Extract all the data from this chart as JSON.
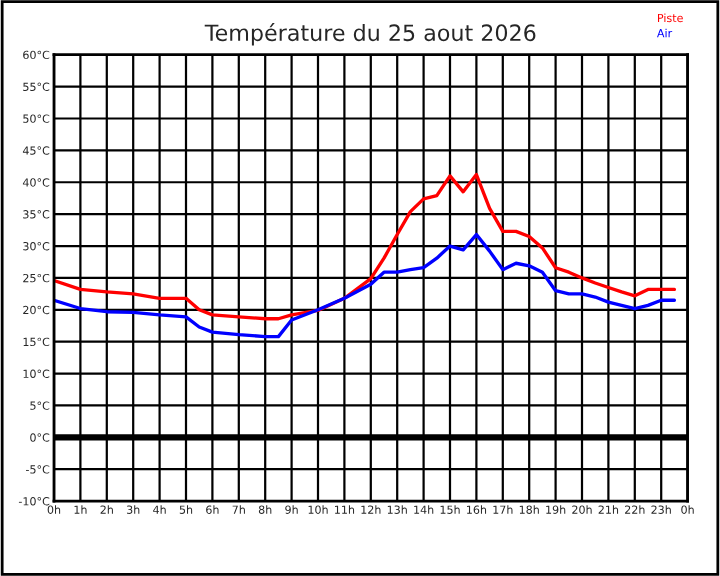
{
  "chart_data": {
    "type": "line",
    "title": "Température du 25 aout 2026",
    "x": [
      "2026-08-25T00:00",
      "2026-08-25T01:00",
      "2026-08-25T02:00",
      "2026-08-25T03:00",
      "2026-08-25T04:00",
      "2026-08-25T05:00",
      "2026-08-25T05:30",
      "2026-08-25T06:00",
      "2026-08-25T07:00",
      "2026-08-25T08:00",
      "2026-08-25T08:30",
      "2026-08-25T09:00",
      "2026-08-25T10:00",
      "2026-08-25T11:00",
      "2026-08-25T12:00",
      "2026-08-25T12:30",
      "2026-08-25T13:00",
      "2026-08-25T13:30",
      "2026-08-25T14:00",
      "2026-08-25T14:30",
      "2026-08-25T15:00",
      "2026-08-25T15:30",
      "2026-08-25T16:00",
      "2026-08-25T16:30",
      "2026-08-25T17:00",
      "2026-08-25T17:30",
      "2026-08-25T18:00",
      "2026-08-25T18:30",
      "2026-08-25T19:00",
      "2026-08-25T19:30",
      "2026-08-25T20:00",
      "2026-08-25T20:30",
      "2026-08-25T21:00",
      "2026-08-25T21:30",
      "2026-08-25T22:00",
      "2026-08-25T22:30",
      "2026-08-25T23:00",
      "2026-08-25T23:30"
    ],
    "series": [
      {
        "name": "Piste",
        "color": "#ff0000",
        "values": [
          24.6,
          23.2,
          22.8,
          22.5,
          21.8,
          21.8,
          20.0,
          19.2,
          18.9,
          18.6,
          18.6,
          19.2,
          19.9,
          21.8,
          24.9,
          28.1,
          31.8,
          35.4,
          37.4,
          37.9,
          41.0,
          38.5,
          41.2,
          35.9,
          32.3,
          32.3,
          31.5,
          29.7,
          26.6,
          25.9,
          25.0,
          24.2,
          23.5,
          22.8,
          22.2,
          23.2,
          23.2,
          23.2
        ]
      },
      {
        "name": "Air",
        "color": "#0000ff",
        "values": [
          21.5,
          20.2,
          19.7,
          19.6,
          19.2,
          18.9,
          17.3,
          16.5,
          16.1,
          15.8,
          15.8,
          18.4,
          20.0,
          21.8,
          24.0,
          25.9,
          25.9,
          26.3,
          26.6,
          28.1,
          30.0,
          29.4,
          31.8,
          29.2,
          26.3,
          27.3,
          26.9,
          25.9,
          23.0,
          22.5,
          22.5,
          22.0,
          21.2,
          20.7,
          20.2,
          20.7,
          21.5,
          21.5
        ]
      }
    ],
    "xlim": [
      "2026-08-25T00:00",
      "2026-08-26T00:00"
    ],
    "xticks": [
      {
        "value": "2026-08-25T00:00",
        "label": "0h"
      },
      {
        "value": "2026-08-25T01:00",
        "label": "1h"
      },
      {
        "value": "2026-08-25T02:00",
        "label": "2h"
      },
      {
        "value": "2026-08-25T03:00",
        "label": "3h"
      },
      {
        "value": "2026-08-25T04:00",
        "label": "4h"
      },
      {
        "value": "2026-08-25T05:00",
        "label": "5h"
      },
      {
        "value": "2026-08-25T06:00",
        "label": "6h"
      },
      {
        "value": "2026-08-25T07:00",
        "label": "7h"
      },
      {
        "value": "2026-08-25T08:00",
        "label": "8h"
      },
      {
        "value": "2026-08-25T09:00",
        "label": "9h"
      },
      {
        "value": "2026-08-25T10:00",
        "label": "10h"
      },
      {
        "value": "2026-08-25T11:00",
        "label": "11h"
      },
      {
        "value": "2026-08-25T12:00",
        "label": "12h"
      },
      {
        "value": "2026-08-25T13:00",
        "label": "13h"
      },
      {
        "value": "2026-08-25T14:00",
        "label": "14h"
      },
      {
        "value": "2026-08-25T15:00",
        "label": "15h"
      },
      {
        "value": "2026-08-25T16:00",
        "label": "16h"
      },
      {
        "value": "2026-08-25T17:00",
        "label": "17h"
      },
      {
        "value": "2026-08-25T18:00",
        "label": "18h"
      },
      {
        "value": "2026-08-25T19:00",
        "label": "19h"
      },
      {
        "value": "2026-08-25T20:00",
        "label": "20h"
      },
      {
        "value": "2026-08-25T21:00",
        "label": "21h"
      },
      {
        "value": "2026-08-25T22:00",
        "label": "22h"
      },
      {
        "value": "2026-08-25T23:00",
        "label": "23h"
      },
      {
        "value": "2026-08-26T00:00",
        "label": "0h"
      }
    ],
    "ylim": [
      -10,
      60
    ],
    "yticks": [
      {
        "value": -10,
        "label": "-10°C"
      },
      {
        "value": -5,
        "label": "-5°C"
      },
      {
        "value": 0,
        "label": "0°C"
      },
      {
        "value": 5,
        "label": "5°C"
      },
      {
        "value": 10,
        "label": "10°C"
      },
      {
        "value": 15,
        "label": "15°C"
      },
      {
        "value": 20,
        "label": "20°C"
      },
      {
        "value": 25,
        "label": "25°C"
      },
      {
        "value": 30,
        "label": "30°C"
      },
      {
        "value": 35,
        "label": "35°C"
      },
      {
        "value": 40,
        "label": "40°C"
      },
      {
        "value": 45,
        "label": "45°C"
      },
      {
        "value": 50,
        "label": "50°C"
      },
      {
        "value": 55,
        "label": "55°C"
      },
      {
        "value": 60,
        "label": "60°C"
      }
    ],
    "ref_lines": [
      {
        "axis": "y",
        "value": 0,
        "color": "#000000"
      }
    ],
    "grid": true,
    "legend": "top right",
    "marker": "none",
    "line_style": "solid"
  }
}
